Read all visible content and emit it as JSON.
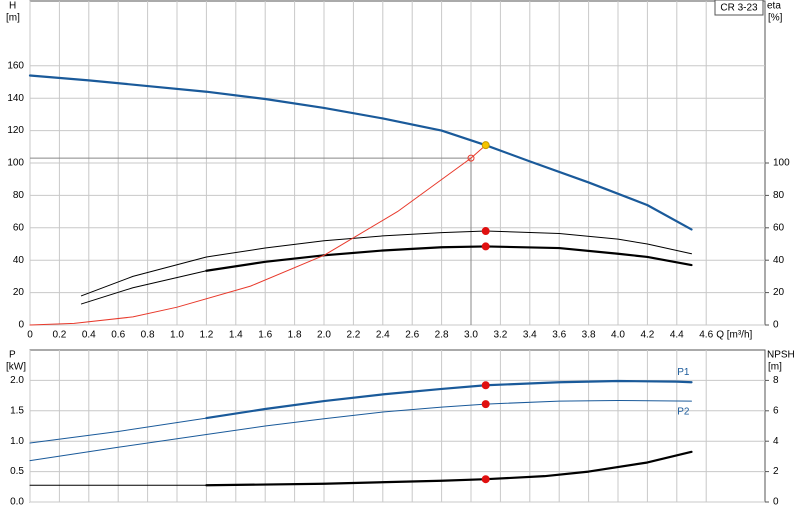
{
  "chart_data": [
    {
      "type": "line",
      "title": "CR 3-23",
      "ylabel": "H",
      "yunit": "[m]",
      "y2label": "eta",
      "y2unit": "[%]",
      "xlabel": "Q [m³/h]",
      "xlim": [
        0,
        5
      ],
      "xticks": [
        0,
        0.2,
        0.4,
        0.6,
        0.8,
        {
          "value": 1,
          "label": "1.0"
        },
        1.2,
        1.4,
        1.6,
        1.8,
        {
          "value": 2,
          "label": "2.0"
        },
        2.2,
        2.4,
        2.6,
        2.8,
        {
          "value": 3,
          "label": "3.0"
        },
        3.2,
        3.4,
        3.6,
        3.8,
        {
          "value": 4,
          "label": "4.0"
        },
        4.2,
        4.4,
        4.6
      ],
      "show_xtick_labels": true,
      "ylim": [
        0,
        200
      ],
      "yticks": [
        0,
        20,
        40,
        60,
        80,
        100,
        120,
        140,
        160
      ],
      "y2lim": [
        0,
        200
      ],
      "y2ticks": [
        0,
        20,
        40,
        60,
        80,
        100
      ],
      "grid": true,
      "series": [
        {
          "color": "#1a5a9a",
          "width": 2.2,
          "x": [
            0,
            0.4,
            0.8,
            1.2,
            1.6,
            2.0,
            2.4,
            2.8,
            3.1,
            3.4,
            3.8,
            4.2,
            4.5
          ],
          "values": [
            154,
            151,
            147.5,
            144,
            139.5,
            134,
            127.5,
            120,
            111,
            101,
            88,
            74,
            59
          ]
        },
        {
          "color": "#000000",
          "width": 1,
          "axis": "y2",
          "x": [
            0.35,
            0.7,
            1.2,
            1.6,
            2.0,
            2.4,
            2.8,
            3.1,
            3.6,
            4.0,
            4.2,
            4.5
          ],
          "values": [
            18,
            30,
            42,
            47.5,
            52,
            55,
            57,
            58,
            56.5,
            53,
            50,
            44
          ]
        },
        {
          "color": "#000000",
          "width": 1,
          "axis": "y2",
          "x": [
            0.35,
            0.7,
            1.2
          ],
          "values": [
            13,
            23,
            33.5
          ]
        },
        {
          "color": "#000000",
          "width": 2.2,
          "axis": "y2",
          "x": [
            1.2,
            1.6,
            2.0,
            2.4,
            2.8,
            3.1,
            3.6,
            4.0,
            4.2,
            4.5
          ],
          "values": [
            33.5,
            39,
            43,
            46,
            48,
            48.5,
            47.5,
            44,
            42,
            37
          ]
        },
        {
          "color": "#e8392b",
          "width": 1,
          "x": [
            0,
            0.3,
            0.7,
            1.0,
            1.5,
            2.0,
            2.5,
            3.0,
            3.1
          ],
          "values": [
            0,
            1,
            5,
            11,
            24,
            43,
            70,
            103,
            111
          ]
        }
      ],
      "guide": {
        "x": 3.0,
        "y": 103,
        "color": "#888888"
      },
      "points": [
        {
          "x": 3.0,
          "y": 103,
          "color": "#e8392b",
          "hollow": true
        },
        {
          "x": 3.1,
          "y": 111,
          "color": "#f5c400"
        },
        {
          "x": 3.1,
          "y": 58,
          "color": "#e01010",
          "axis": "y2"
        },
        {
          "x": 3.1,
          "y": 48.5,
          "color": "#e01010",
          "axis": "y2"
        }
      ]
    },
    {
      "type": "line",
      "ylabel": "P",
      "yunit": "[kW]",
      "y2label": "NPSH",
      "y2unit": "[m]",
      "xlim": [
        0,
        5
      ],
      "xticks": [
        0,
        0.2,
        0.4,
        0.6,
        0.8,
        1,
        1.2,
        1.4,
        1.6,
        1.8,
        2,
        2.2,
        2.4,
        2.6,
        2.8,
        3,
        3.2,
        3.4,
        3.6,
        3.8,
        4,
        4.2,
        4.4,
        4.6
      ],
      "show_xtick_labels": false,
      "ylim": [
        0,
        2.5
      ],
      "yticks": [
        {
          "value": 0,
          "label": "0.0"
        },
        0.5,
        {
          "value": 1,
          "label": "1.0"
        },
        1.5,
        {
          "value": 2,
          "label": "2.0"
        }
      ],
      "y2lim": [
        0,
        10
      ],
      "y2ticks": [
        0,
        2,
        4,
        6,
        8
      ],
      "grid": true,
      "series": [
        {
          "color": "#1a5a9a",
          "width": 1,
          "x": [
            0,
            0.6,
            1.2
          ],
          "values": [
            0.97,
            1.16,
            1.38
          ]
        },
        {
          "name": "P1",
          "label_position": "above",
          "color": "#1a5a9a",
          "width": 2.2,
          "x": [
            1.2,
            1.6,
            2.0,
            2.4,
            2.8,
            3.1,
            3.6,
            4.0,
            4.4,
            4.5
          ],
          "values": [
            1.38,
            1.53,
            1.66,
            1.77,
            1.86,
            1.92,
            1.97,
            1.99,
            1.98,
            1.97
          ]
        },
        {
          "name": "P2",
          "label_position": "below",
          "color": "#1a5a9a",
          "width": 1,
          "x": [
            0,
            0.6,
            1.2,
            1.6,
            2.0,
            2.4,
            2.8,
            3.1,
            3.6,
            4.0,
            4.5
          ],
          "values": [
            0.68,
            0.9,
            1.11,
            1.25,
            1.37,
            1.48,
            1.56,
            1.61,
            1.66,
            1.67,
            1.66
          ]
        },
        {
          "color": "#000000",
          "width": 1,
          "axis": "y2",
          "x": [
            0,
            0.6,
            1.2
          ],
          "values": [
            1.1,
            1.1,
            1.1
          ]
        },
        {
          "color": "#000000",
          "width": 2.2,
          "axis": "y2",
          "x": [
            1.2,
            2.0,
            2.8,
            3.1,
            3.5,
            3.8,
            4.2,
            4.5
          ],
          "values": [
            1.1,
            1.2,
            1.4,
            1.5,
            1.7,
            2.0,
            2.6,
            3.3
          ]
        }
      ],
      "points": [
        {
          "x": 3.1,
          "y": 1.92,
          "color": "#e01010"
        },
        {
          "x": 3.1,
          "y": 1.61,
          "color": "#e01010"
        },
        {
          "x": 3.1,
          "y": 1.5,
          "color": "#e01010",
          "axis": "y2"
        }
      ]
    }
  ]
}
